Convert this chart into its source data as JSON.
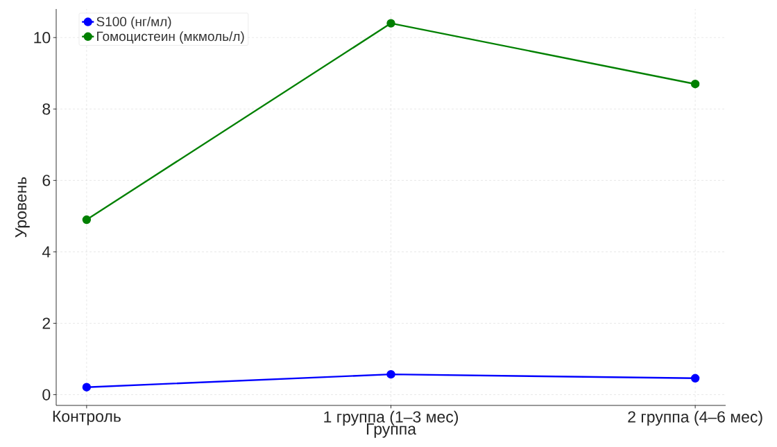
{
  "chart_data": {
    "type": "line",
    "xlabel": "Группа",
    "ylabel": "Уровень",
    "categories": [
      "Контроль",
      "1 группа (1–3 мес)",
      "2 группа (4–6 мес)"
    ],
    "series": [
      {
        "name": "S100 (нг/мл)",
        "color": "#0000ff",
        "values": [
          0.21,
          0.57,
          0.46
        ]
      },
      {
        "name": "Гомоцистеин (мкмоль/л)",
        "color": "#008000",
        "values": [
          4.9,
          10.4,
          8.7
        ]
      }
    ],
    "ylim": [
      -0.3,
      10.8
    ],
    "yticks": [
      0,
      2,
      4,
      6,
      8,
      10
    ],
    "grid": true,
    "legend": "top left",
    "marker": "circle",
    "line_style": "solid"
  }
}
